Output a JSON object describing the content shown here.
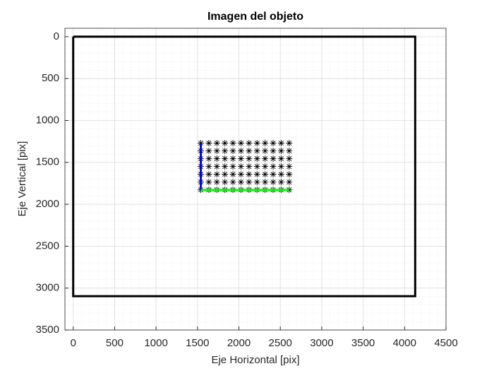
{
  "chart_data": {
    "type": "scatter",
    "title": "Imagen del objeto",
    "x_label": "Eje Horizontal [pix]",
    "y_label": "Eje Vertical [pix]",
    "xlim": [
      -100,
      4500
    ],
    "ylim": [
      -100,
      3500
    ],
    "y_reversed": true,
    "xticks": [
      0,
      500,
      1000,
      1500,
      2000,
      2500,
      3000,
      3500,
      4000,
      4500
    ],
    "yticks": [
      0,
      500,
      1000,
      1500,
      2000,
      2500,
      3000,
      3500
    ],
    "grid": true,
    "minor_grid_divisions": 5,
    "series": [
      {
        "kind": "line",
        "color": "#000000",
        "x": [
          0,
          4128,
          4128,
          0,
          0
        ],
        "y": [
          0,
          0,
          3096,
          3096,
          0
        ]
      },
      {
        "kind": "marker",
        "color": "#000000",
        "x": [
          1540,
          1637,
          1734,
          1831,
          1928,
          2025,
          2122,
          2219,
          2316,
          2413,
          2510,
          2607,
          1540,
          1637,
          1734,
          1831,
          1928,
          2025,
          2122,
          2219,
          2316,
          2413,
          2510,
          2607,
          1540,
          1637,
          1734,
          1831,
          1928,
          2025,
          2122,
          2219,
          2316,
          2413,
          2510,
          2607,
          1540,
          1637,
          1734,
          1831,
          1928,
          2025,
          2122,
          2219,
          2316,
          2413,
          2510,
          2607,
          1540,
          1637,
          1734,
          1831,
          1928,
          2025,
          2122,
          2219,
          2316,
          2413,
          2510,
          2607,
          1540,
          1637,
          1734,
          1831,
          1928,
          2025,
          2122,
          2219,
          2316,
          2413,
          2510,
          2607,
          1540,
          1637,
          1734,
          1831,
          1928,
          2025,
          2122,
          2219,
          2316,
          2413,
          2510,
          2607
        ],
        "y": [
          1270,
          1270,
          1270,
          1270,
          1270,
          1270,
          1270,
          1270,
          1270,
          1270,
          1270,
          1270,
          1363,
          1363,
          1363,
          1363,
          1363,
          1363,
          1363,
          1363,
          1363,
          1363,
          1363,
          1363,
          1456,
          1456,
          1456,
          1456,
          1456,
          1456,
          1456,
          1456,
          1456,
          1456,
          1456,
          1456,
          1549,
          1549,
          1549,
          1549,
          1549,
          1549,
          1549,
          1549,
          1549,
          1549,
          1549,
          1549,
          1642,
          1642,
          1642,
          1642,
          1642,
          1642,
          1642,
          1642,
          1642,
          1642,
          1642,
          1642,
          1735,
          1735,
          1735,
          1735,
          1735,
          1735,
          1735,
          1735,
          1735,
          1735,
          1735,
          1735,
          1828,
          1828,
          1828,
          1828,
          1828,
          1828,
          1828,
          1828,
          1828,
          1828,
          1828,
          1828
        ]
      },
      {
        "kind": "line",
        "color": "#0000ff",
        "x": [
          1540,
          1540
        ],
        "y": [
          1270,
          1828
        ]
      },
      {
        "kind": "line",
        "color": "#00ff00",
        "x": [
          1540,
          2607
        ],
        "y": [
          1828,
          1828
        ]
      }
    ]
  }
}
